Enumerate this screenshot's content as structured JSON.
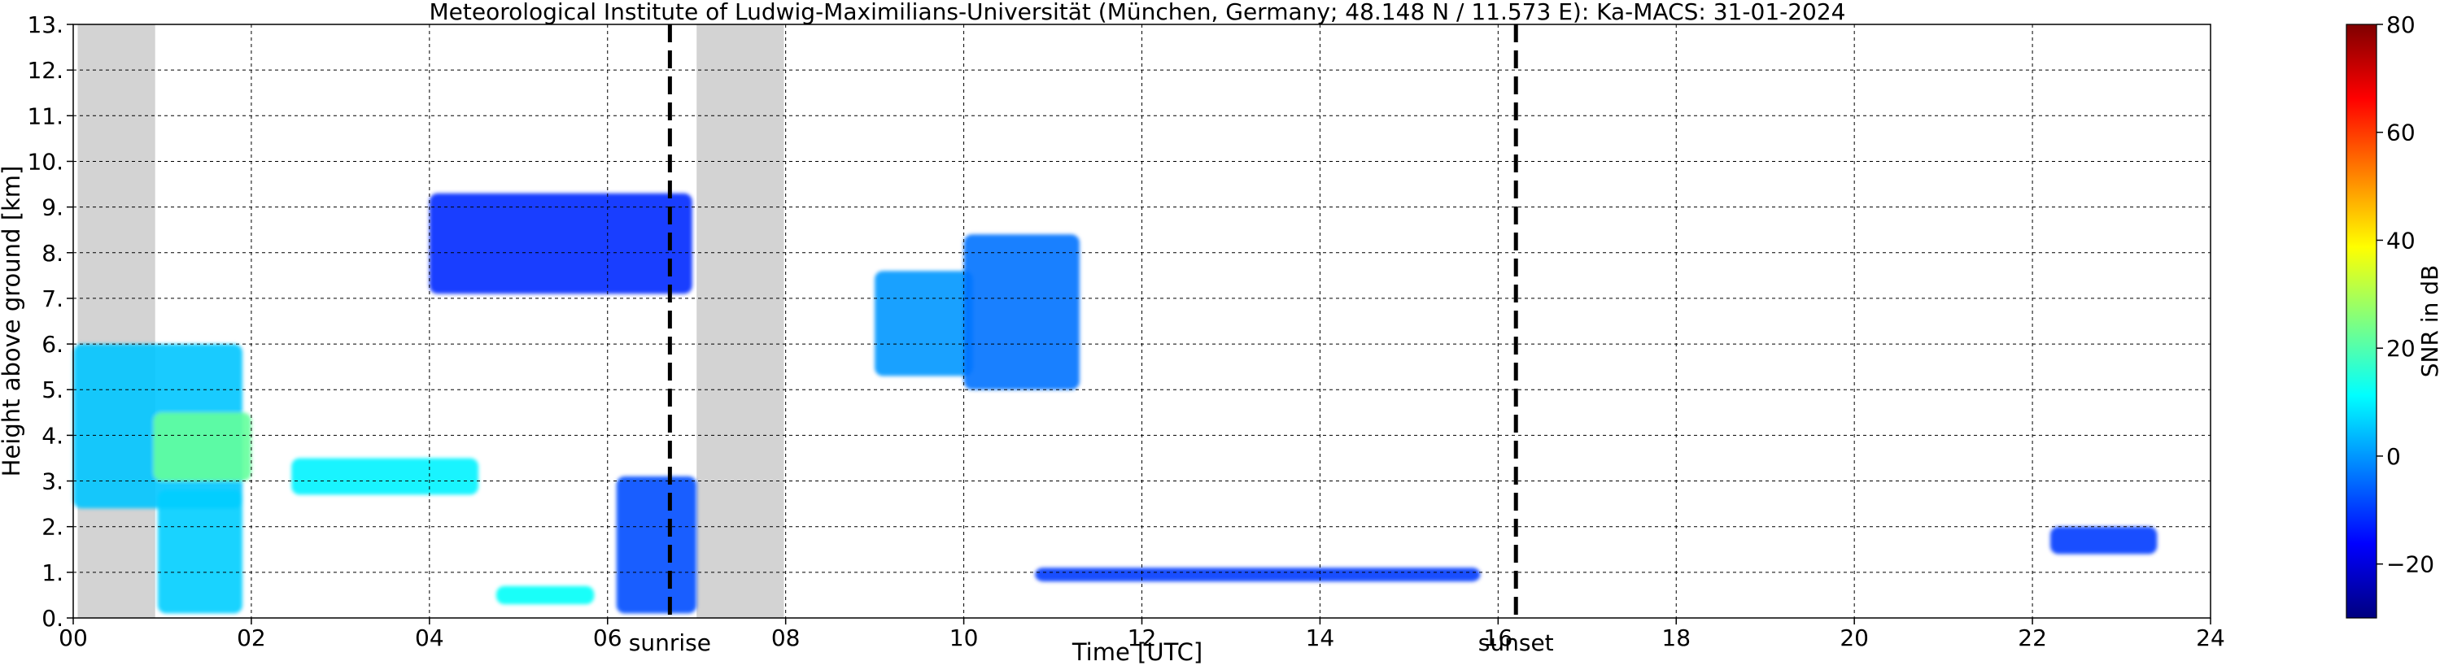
{
  "chart_data": {
    "type": "heatmap",
    "title": "Meteorological Institute of Ludwig-Maximilians-Universität (München, Germany; 48.148 N / 11.573 E):    Ka-MACS: 31-01-2024",
    "xlabel": "Time [UTC]",
    "ylabel": "Height above ground [km]",
    "xlim": [
      0,
      24
    ],
    "ylim": [
      0,
      13
    ],
    "x_ticks": [
      "00",
      "02",
      "04",
      "06",
      "08",
      "10",
      "12",
      "14",
      "16",
      "18",
      "20",
      "22",
      "24"
    ],
    "y_ticks": [
      "0.",
      "1.",
      "2.",
      "3.",
      "4.",
      "5.",
      "6.",
      "7.",
      "8.",
      "9.",
      "10.",
      "11.",
      "12.",
      "13."
    ],
    "grid": true,
    "grid_style": "dashed",
    "colorbar": {
      "label": "SNR in dB",
      "range": [
        -30,
        80
      ],
      "ticks": [
        "−20",
        "0",
        "20",
        "40",
        "60",
        "80"
      ],
      "colormap": "jet"
    },
    "missing_data_intervals": [
      [
        0.05,
        0.92
      ],
      [
        7.0,
        7.98
      ]
    ],
    "vlines": [
      {
        "x": 6.7,
        "label": "sunrise"
      },
      {
        "x": 16.2,
        "label": "sunset"
      }
    ],
    "echo_regions": [
      {
        "x": [
          0.0,
          1.9
        ],
        "y": [
          2.4,
          6.0
        ],
        "snr": 5
      },
      {
        "x": [
          0.9,
          2.0
        ],
        "y": [
          3.0,
          4.5
        ],
        "snr": 22
      },
      {
        "x": [
          0.95,
          1.9
        ],
        "y": [
          0.1,
          2.8
        ],
        "snr": 6
      },
      {
        "x": [
          2.45,
          4.55
        ],
        "y": [
          2.7,
          3.5
        ],
        "snr": 10
      },
      {
        "x": [
          4.0,
          6.95
        ],
        "y": [
          7.1,
          9.3
        ],
        "snr": -12
      },
      {
        "x": [
          4.75,
          5.85
        ],
        "y": [
          0.3,
          0.7
        ],
        "snr": 12
      },
      {
        "x": [
          6.1,
          7.0
        ],
        "y": [
          0.1,
          3.1
        ],
        "snr": -8
      },
      {
        "x": [
          9.0,
          10.1
        ],
        "y": [
          5.3,
          7.6
        ],
        "snr": 0
      },
      {
        "x": [
          10.0,
          11.3
        ],
        "y": [
          5.0,
          8.4
        ],
        "snr": -4
      },
      {
        "x": [
          10.8,
          15.8
        ],
        "y": [
          0.8,
          1.1
        ],
        "snr": -10
      },
      {
        "x": [
          22.2,
          23.4
        ],
        "y": [
          1.4,
          2.0
        ],
        "snr": -10
      }
    ]
  }
}
